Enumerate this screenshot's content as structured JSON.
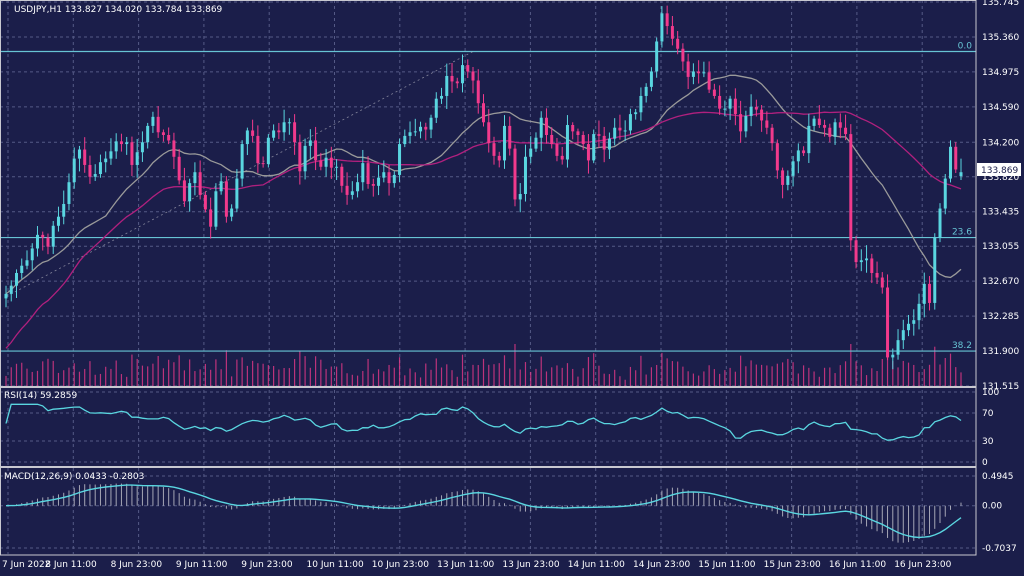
{
  "colors": {
    "background": "#1b1e4a",
    "grid": "#555a86",
    "bull": "#5ad6e0",
    "bear": "#f23a8c",
    "ma_fast": "#9a9a9a",
    "ma_slow": "#b0207e",
    "fib": "#67c4d4",
    "separator": "#c8c8d0",
    "text": "#ffffff"
  },
  "main": {
    "header": "USDJPY,H1  133.827 134.020 133.784 133.869",
    "price_tag": "133.869"
  },
  "rsi": {
    "label": "RSI(14) 59.2859"
  },
  "macd": {
    "label": "MACD(12,26,9) 0.0433 -0.2803"
  },
  "chart_data": [
    {
      "type": "candlestick",
      "symbol": "USDJPY",
      "timeframe": "H1",
      "ohlc_last": {
        "open": 133.827,
        "high": 134.02,
        "low": 133.784,
        "close": 133.869
      },
      "ylim": [
        131.515,
        135.745
      ],
      "y_ticks": [
        135.745,
        135.36,
        134.975,
        134.59,
        134.2,
        133.82,
        133.435,
        133.055,
        132.67,
        132.285,
        131.9,
        131.515
      ],
      "x_tick_labels": [
        "7 Jun 2022",
        "8 Jun 11:00",
        "8 Jun 23:00",
        "9 Jun 11:00",
        "9 Jun 23:00",
        "10 Jun 11:00",
        "10 Jun 23:00",
        "13 Jun 11:00",
        "13 Jun 23:00",
        "14 Jun 11:00",
        "14 Jun 23:00",
        "15 Jun 11:00",
        "15 Jun 23:00",
        "16 Jun 11:00",
        "16 Jun 23:00"
      ],
      "fib_levels": [
        {
          "label": "0.0",
          "price": 135.2
        },
        {
          "label": "23.6",
          "price": 133.15
        },
        {
          "label": "38.2",
          "price": 131.9
        }
      ],
      "closes_approx": [
        132.53,
        132.62,
        132.76,
        132.84,
        132.9,
        133.03,
        133.18,
        133.15,
        133.05,
        133.28,
        133.38,
        133.52,
        133.76,
        134.02,
        134.12,
        133.95,
        133.82,
        133.85,
        133.98,
        134.02,
        134.1,
        134.21,
        134.18,
        134.2,
        133.95,
        134.09,
        134.2,
        134.38,
        134.48,
        134.31,
        134.28,
        134.22,
        134.04,
        133.78,
        133.55,
        133.75,
        133.87,
        133.62,
        133.46,
        133.27,
        133.66,
        133.77,
        133.38,
        133.47,
        133.8,
        134.18,
        134.33,
        134.27,
        133.97,
        133.96,
        134.25,
        134.33,
        134.31,
        134.42,
        134.42,
        134.2,
        133.88,
        134.16,
        134.22,
        134.0,
        133.93,
        134.03,
        133.92,
        133.93,
        133.72,
        133.62,
        133.66,
        133.76,
        133.97,
        133.74,
        133.72,
        133.81,
        133.87,
        133.75,
        133.84,
        134.18,
        134.27,
        134.31,
        134.32,
        134.37,
        134.34,
        134.47,
        134.68,
        134.71,
        134.93,
        134.87,
        134.85,
        135.05,
        134.98,
        134.88,
        134.63,
        134.42,
        134.19,
        134.05,
        134.0,
        134.38,
        134.13,
        133.57,
        133.63,
        134.04,
        134.13,
        134.25,
        134.47,
        134.28,
        134.18,
        134.05,
        134.01,
        134.39,
        134.32,
        134.28,
        134.18,
        134.0,
        134.29,
        134.27,
        134.12,
        134.24,
        134.36,
        134.33,
        134.33,
        134.51,
        134.53,
        134.71,
        134.81,
        134.98,
        135.31,
        135.62,
        135.48,
        135.34,
        135.23,
        135.09,
        134.92,
        134.98,
        134.96,
        134.97,
        134.78,
        134.71,
        134.57,
        134.57,
        134.68,
        134.51,
        134.32,
        134.49,
        134.59,
        134.56,
        134.44,
        134.36,
        134.19,
        133.89,
        133.73,
        133.83,
        133.99,
        134.11,
        134.08,
        134.38,
        134.46,
        134.39,
        134.36,
        134.26,
        134.42,
        134.36,
        134.29,
        133.12,
        132.88,
        132.9,
        132.92,
        132.76,
        132.71,
        132.6,
        131.83,
        131.86,
        132.02,
        132.13,
        132.2,
        132.24,
        132.42,
        132.64,
        132.43,
        133.15,
        133.47,
        133.8,
        134.15,
        133.9,
        133.87
      ]
    },
    {
      "type": "line",
      "name": "RSI(14)",
      "value": 59.2859,
      "ylim": [
        0,
        100
      ],
      "y_ticks": [
        100,
        70,
        30,
        0
      ]
    },
    {
      "type": "bar+line",
      "name": "MACD(12,26,9)",
      "macd": 0.0433,
      "signal": -0.2803,
      "y_ticks": [
        0.4945,
        0.0,
        -0.7037
      ]
    }
  ]
}
